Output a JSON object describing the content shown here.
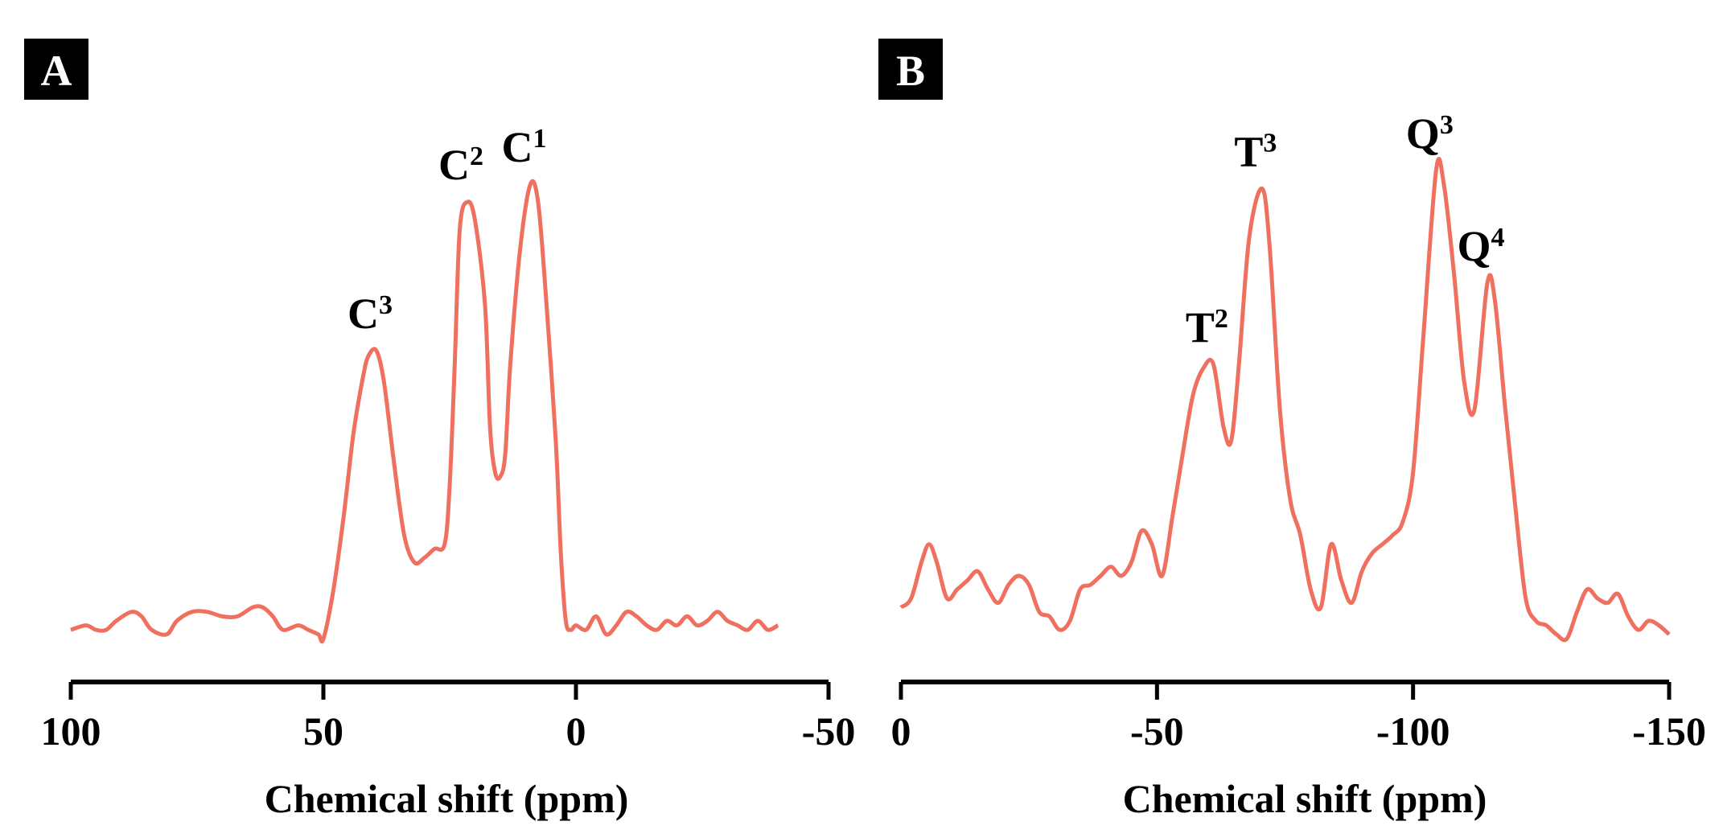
{
  "chart_data": [
    {
      "panel": "A",
      "type": "line",
      "xlabel": "Chemical shift (ppm)",
      "ylabel": "",
      "xlim": [
        100,
        -50
      ],
      "xticks": [
        "100",
        "50",
        "0",
        "-50"
      ],
      "y_axis_shown": false,
      "color": "#f07060",
      "peaks": [
        {
          "label": "C",
          "sup": "3",
          "x": 39.5,
          "y": 0.65
        },
        {
          "label": "C",
          "sup": "2",
          "x": 21.5,
          "y": 0.98
        },
        {
          "label": "C",
          "sup": "1",
          "x": 9,
          "y": 1.02
        }
      ],
      "series": [
        {
          "x": [
            100,
            97,
            95,
            93,
            91,
            88,
            86,
            84,
            81,
            79,
            76,
            73,
            70,
            67,
            64,
            62,
            60,
            58,
            55,
            53,
            51,
            50,
            48,
            46,
            44,
            42,
            41,
            39.5,
            38,
            36,
            34,
            32,
            30,
            28,
            26,
            25,
            24,
            23,
            21.5,
            20,
            18,
            17,
            16,
            15,
            14,
            13,
            11,
            9,
            7.5,
            6,
            4,
            3,
            2,
            1,
            0,
            -2,
            -4,
            -6,
            -8,
            -10,
            -12,
            -14,
            -16,
            -18,
            -20,
            -22,
            -24,
            -26,
            -28,
            -30,
            -32,
            -34,
            -36,
            -38,
            -40
          ],
          "y": [
            0.03,
            0.04,
            0.03,
            0.03,
            0.05,
            0.07,
            0.06,
            0.03,
            0.02,
            0.05,
            0.07,
            0.07,
            0.06,
            0.06,
            0.08,
            0.08,
            0.06,
            0.03,
            0.04,
            0.03,
            0.02,
            0.01,
            0.12,
            0.28,
            0.47,
            0.6,
            0.64,
            0.65,
            0.58,
            0.4,
            0.24,
            0.18,
            0.19,
            0.21,
            0.22,
            0.35,
            0.62,
            0.92,
            0.98,
            0.94,
            0.75,
            0.48,
            0.38,
            0.37,
            0.42,
            0.62,
            0.88,
            1.02,
            0.98,
            0.78,
            0.45,
            0.2,
            0.05,
            0.03,
            0.04,
            0.03,
            0.06,
            0.02,
            0.04,
            0.07,
            0.06,
            0.04,
            0.03,
            0.05,
            0.04,
            0.06,
            0.04,
            0.05,
            0.07,
            0.05,
            0.04,
            0.03,
            0.05,
            0.03,
            0.04
          ]
        }
      ]
    },
    {
      "panel": "B",
      "type": "line",
      "xlabel": "Chemical shift (ppm)",
      "ylabel": "",
      "xlim": [
        0,
        -150
      ],
      "xticks": [
        "0",
        "-50",
        "-100",
        "-150"
      ],
      "y_axis_shown": false,
      "color": "#f07060",
      "peaks": [
        {
          "label": "T",
          "sup": "2",
          "x": -61,
          "y": 0.62
        },
        {
          "label": "T",
          "sup": "3",
          "x": -70.5,
          "y": 1.01
        },
        {
          "label": "Q",
          "sup": "3",
          "x": -104.5,
          "y": 1.05
        },
        {
          "label": "Q",
          "sup": "4",
          "x": -114.5,
          "y": 0.8
        }
      ],
      "series": [
        {
          "x": [
            0,
            -2,
            -4,
            -5.5,
            -7,
            -9,
            -11,
            -13,
            -15,
            -17,
            -19,
            -21,
            -23,
            -25,
            -27,
            -29,
            -31,
            -33,
            -35,
            -37,
            -39,
            -41,
            -43,
            -45,
            -47,
            -49,
            -51,
            -53,
            -55,
            -57,
            -59,
            -61,
            -63,
            -64.5,
            -66,
            -68,
            -70.5,
            -72,
            -74,
            -76,
            -78,
            -80,
            -82,
            -84,
            -86,
            -88,
            -90,
            -92,
            -94,
            -96,
            -98,
            -100,
            -102,
            -104.5,
            -106,
            -108,
            -110,
            -112,
            -114.5,
            -116,
            -118,
            -120,
            -122,
            -124,
            -126,
            -128,
            -130,
            -132,
            -134,
            -136,
            -138,
            -140,
            -142,
            -144,
            -146,
            -148,
            -150
          ],
          "y": [
            0.08,
            0.1,
            0.18,
            0.22,
            0.18,
            0.1,
            0.12,
            0.14,
            0.16,
            0.12,
            0.09,
            0.13,
            0.15,
            0.13,
            0.07,
            0.06,
            0.03,
            0.05,
            0.12,
            0.13,
            0.15,
            0.17,
            0.15,
            0.18,
            0.25,
            0.22,
            0.15,
            0.28,
            0.42,
            0.55,
            0.61,
            0.62,
            0.48,
            0.45,
            0.62,
            0.9,
            1.01,
            0.88,
            0.52,
            0.32,
            0.24,
            0.12,
            0.08,
            0.22,
            0.14,
            0.09,
            0.16,
            0.2,
            0.22,
            0.24,
            0.27,
            0.38,
            0.68,
            1.05,
            1.02,
            0.82,
            0.58,
            0.52,
            0.8,
            0.76,
            0.52,
            0.3,
            0.1,
            0.05,
            0.04,
            0.02,
            0.01,
            0.07,
            0.12,
            0.1,
            0.09,
            0.11,
            0.06,
            0.03,
            0.05,
            0.04,
            0.02
          ]
        }
      ]
    }
  ]
}
